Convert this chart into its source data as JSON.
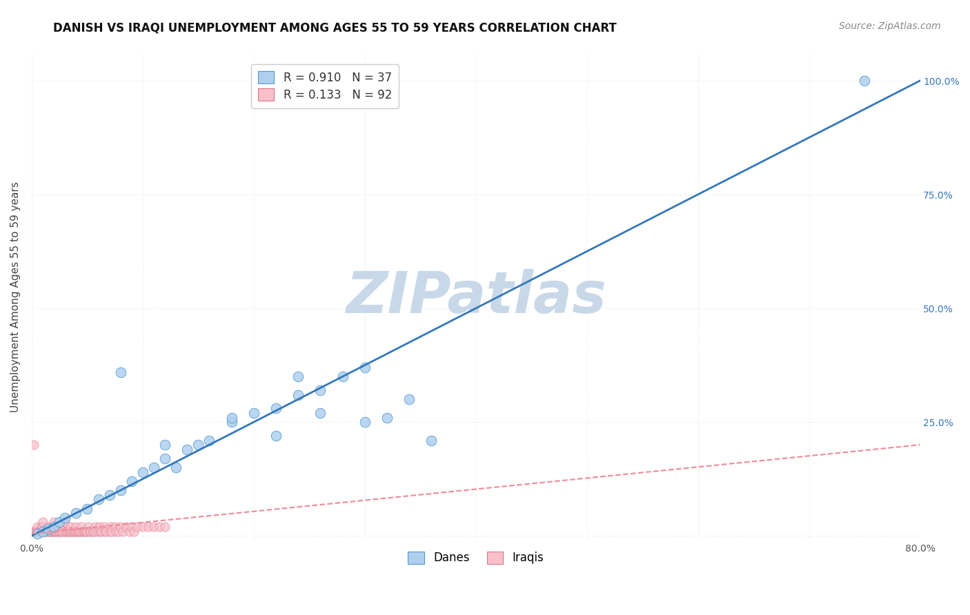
{
  "title": "DANISH VS IRAQI UNEMPLOYMENT AMONG AGES 55 TO 59 YEARS CORRELATION CHART",
  "source": "Source: ZipAtlas.com",
  "ylabel": "Unemployment Among Ages 55 to 59 years",
  "watermark": "ZIPatlas",
  "legend_entries": [
    {
      "label": "R = 0.910   N = 37",
      "color": "#aecfee",
      "edgecolor": "#6aaad4"
    },
    {
      "label": "R = 0.133   N = 92",
      "color": "#f9c0cb",
      "edgecolor": "#e890a0"
    }
  ],
  "legend_bottom": [
    {
      "label": "Danes",
      "color": "#aecfee",
      "edgecolor": "#6aaad4"
    },
    {
      "label": "Iraqis",
      "color": "#f9c0cb",
      "edgecolor": "#e890a0"
    }
  ],
  "blue_scatter_x": [
    0.005,
    0.01,
    0.015,
    0.02,
    0.025,
    0.03,
    0.04,
    0.05,
    0.06,
    0.07,
    0.08,
    0.09,
    0.1,
    0.11,
    0.12,
    0.13,
    0.14,
    0.15,
    0.16,
    0.18,
    0.2,
    0.22,
    0.24,
    0.26,
    0.28,
    0.3,
    0.32,
    0.34,
    0.36,
    0.26,
    0.3,
    0.22,
    0.18,
    0.24,
    0.08,
    0.12,
    0.75
  ],
  "blue_scatter_y": [
    0.005,
    0.01,
    0.015,
    0.02,
    0.03,
    0.04,
    0.05,
    0.06,
    0.08,
    0.09,
    0.1,
    0.12,
    0.14,
    0.15,
    0.17,
    0.15,
    0.19,
    0.2,
    0.21,
    0.25,
    0.27,
    0.28,
    0.31,
    0.32,
    0.35,
    0.25,
    0.26,
    0.3,
    0.21,
    0.27,
    0.37,
    0.22,
    0.26,
    0.35,
    0.36,
    0.2,
    1.0
  ],
  "pink_scatter_x": [
    0.001,
    0.002,
    0.003,
    0.004,
    0.005,
    0.005,
    0.006,
    0.007,
    0.008,
    0.009,
    0.01,
    0.01,
    0.01,
    0.012,
    0.013,
    0.014,
    0.015,
    0.015,
    0.016,
    0.017,
    0.018,
    0.019,
    0.02,
    0.02,
    0.02,
    0.021,
    0.022,
    0.023,
    0.024,
    0.025,
    0.025,
    0.026,
    0.027,
    0.028,
    0.03,
    0.03,
    0.03,
    0.031,
    0.032,
    0.033,
    0.034,
    0.035,
    0.035,
    0.036,
    0.037,
    0.038,
    0.039,
    0.04,
    0.04,
    0.041,
    0.042,
    0.043,
    0.044,
    0.045,
    0.046,
    0.047,
    0.048,
    0.049,
    0.05,
    0.051,
    0.052,
    0.053,
    0.055,
    0.056,
    0.057,
    0.058,
    0.06,
    0.061,
    0.062,
    0.063,
    0.065,
    0.066,
    0.067,
    0.07,
    0.071,
    0.072,
    0.075,
    0.076,
    0.078,
    0.08,
    0.082,
    0.085,
    0.088,
    0.09,
    0.092,
    0.095,
    0.1,
    0.105,
    0.11,
    0.115,
    0.12,
    0.002
  ],
  "pink_scatter_y": [
    0.01,
    0.01,
    0.01,
    0.01,
    0.01,
    0.02,
    0.01,
    0.01,
    0.01,
    0.02,
    0.01,
    0.02,
    0.03,
    0.01,
    0.01,
    0.01,
    0.01,
    0.02,
    0.01,
    0.01,
    0.01,
    0.01,
    0.01,
    0.02,
    0.03,
    0.01,
    0.01,
    0.01,
    0.01,
    0.01,
    0.02,
    0.01,
    0.01,
    0.01,
    0.01,
    0.02,
    0.03,
    0.01,
    0.01,
    0.01,
    0.01,
    0.01,
    0.02,
    0.01,
    0.01,
    0.01,
    0.01,
    0.01,
    0.02,
    0.01,
    0.01,
    0.01,
    0.01,
    0.02,
    0.01,
    0.01,
    0.01,
    0.01,
    0.01,
    0.02,
    0.01,
    0.01,
    0.01,
    0.01,
    0.02,
    0.01,
    0.01,
    0.02,
    0.01,
    0.01,
    0.02,
    0.01,
    0.01,
    0.01,
    0.02,
    0.01,
    0.02,
    0.01,
    0.01,
    0.02,
    0.01,
    0.02,
    0.01,
    0.02,
    0.01,
    0.02,
    0.02,
    0.02,
    0.02,
    0.02,
    0.02,
    0.2
  ],
  "blue_line_x": [
    0.0,
    0.8
  ],
  "blue_line_y": [
    0.0,
    1.0
  ],
  "pink_line_x": [
    0.0,
    0.8
  ],
  "pink_line_y": [
    0.005,
    0.2
  ],
  "xlim": [
    0.0,
    0.8
  ],
  "ylim": [
    -0.01,
    1.06
  ],
  "yticks": [
    0.0,
    0.25,
    0.5,
    0.75,
    1.0
  ],
  "ytick_labels_right": [
    "",
    "25.0%",
    "50.0%",
    "75.0%",
    "100.0%"
  ],
  "xticks": [
    0.0,
    0.1,
    0.2,
    0.3,
    0.4,
    0.5,
    0.6,
    0.7,
    0.8
  ],
  "xtick_labels": [
    "0.0%",
    "",
    "",
    "",
    "",
    "",
    "",
    "",
    "80.0%"
  ],
  "blue_color": "#aecfee",
  "blue_edge_color": "#5599cc",
  "blue_line_color": "#3377bb",
  "pink_color": "#f9c0cb",
  "pink_edge_color": "#dd7788",
  "pink_line_color": "#ee8899",
  "grid_color": "#e8e8e8",
  "grid_linestyle": ":",
  "background_color": "#ffffff",
  "title_fontsize": 12,
  "axis_label_fontsize": 11,
  "tick_fontsize": 10,
  "legend_fontsize": 12,
  "watermark_color": "#c8d8e8",
  "watermark_fontsize": 60,
  "source_fontsize": 10,
  "right_tick_color": "#3377bb"
}
